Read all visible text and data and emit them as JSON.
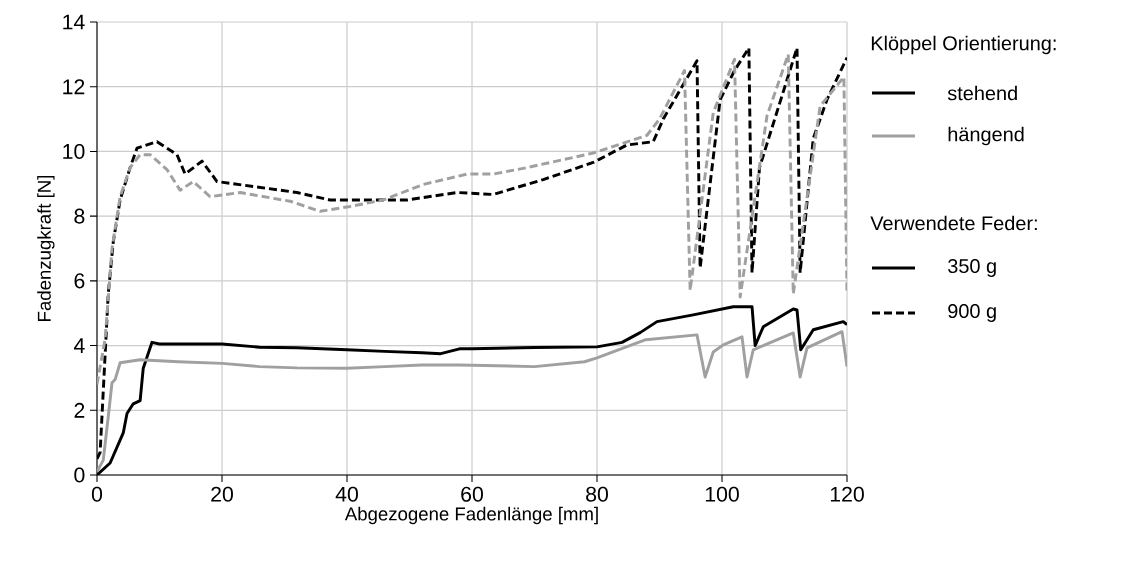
{
  "chart_data": {
    "type": "line",
    "xlabel": "Abgezogene Fadenlänge [mm]",
    "ylabel": "Fadenzugkraft [N]",
    "xlim": [
      0,
      120
    ],
    "ylim": [
      0,
      14
    ],
    "xticks": [
      0,
      20,
      40,
      60,
      80,
      100,
      120
    ],
    "yticks": [
      0,
      2,
      4,
      6,
      8,
      10,
      12,
      14
    ],
    "grid": true,
    "legend": "right",
    "legend_title": "Klöppel Orientierung:",
    "marker": "none",
    "annotations": [
      "Verwendete Feder:",
      "350 g",
      "900 g"
    ],
    "series": [
      {
        "name": "stehend",
        "color": "#000000",
        "line_style": "solid",
        "x": [
          0,
          2.1,
          4.2,
          4.8,
          5.8,
          6.9,
          7.4,
          8.8,
          10,
          15,
          20,
          26,
          32,
          40,
          46,
          52,
          55,
          58,
          60,
          70,
          80,
          84,
          86.9,
          89.6,
          95.4,
          101.8,
          104.8,
          105.3,
          106.6,
          111.4,
          112,
          112.6,
          114.6,
          119.4,
          120
        ],
        "values": [
          0,
          0.37,
          1.3,
          1.9,
          2.2,
          2.3,
          3.3,
          4.1,
          4.05,
          4.05,
          4.05,
          3.95,
          3.93,
          3.87,
          3.82,
          3.78,
          3.75,
          3.9,
          3.9,
          3.94,
          3.96,
          4.1,
          4.4,
          4.74,
          4.95,
          5.2,
          5.2,
          4.0,
          4.58,
          5.13,
          5.1,
          3.87,
          4.49,
          4.74,
          4.65
        ]
      },
      {
        "name": "hängend",
        "color": "#a0a0a0",
        "line_style": "solid",
        "x": [
          0,
          1,
          1.8,
          2.4,
          2.9,
          3.7,
          6.9,
          13,
          20,
          26,
          32,
          40,
          46,
          52,
          58,
          70,
          78,
          80,
          87.8,
          96,
          97.3,
          98.6,
          100.2,
          103.2,
          104,
          105,
          111.4,
          112.5,
          113.6,
          119.2,
          120
        ],
        "values": [
          0.1,
          0.46,
          1.8,
          2.85,
          2.95,
          3.47,
          3.56,
          3.5,
          3.45,
          3.35,
          3.31,
          3.3,
          3.35,
          3.4,
          3.4,
          3.35,
          3.5,
          3.62,
          4.18,
          4.33,
          3.03,
          3.8,
          4.02,
          4.27,
          3.03,
          3.87,
          4.39,
          3.03,
          3.93,
          4.43,
          3.35
        ]
      },
      {
        "color": "#000000",
        "line_style": "dashed",
        "x": [
          0,
          0.5,
          1.8,
          2.6,
          3.7,
          5.3,
          6.4,
          9.6,
          12.8,
          14.1,
          16.8,
          19.2,
          25.6,
          32,
          37.3,
          44.8,
          49.6,
          57.6,
          63.4,
          71.4,
          79.4,
          84.8,
          89,
          90.6,
          96,
          96.5,
          99.7,
          102,
          104.3,
          104.8,
          106,
          112,
          112.5,
          114.6,
          116.8,
          120
        ],
        "values": [
          0.5,
          0.7,
          5.6,
          7.2,
          8.5,
          9.5,
          10.1,
          10.3,
          9.9,
          9.3,
          9.7,
          9.07,
          8.9,
          8.73,
          8.5,
          8.5,
          8.5,
          8.73,
          8.67,
          9.13,
          9.66,
          10.2,
          10.3,
          11.0,
          12.8,
          6.4,
          11.6,
          12.5,
          13.2,
          6.25,
          9.5,
          13.2,
          6.25,
          10.4,
          11.6,
          12.9
        ]
      },
      {
        "color": "#a0a0a0",
        "line_style": "dashed",
        "x": [
          0,
          1.3,
          2.4,
          3.7,
          5.3,
          6.9,
          8.5,
          11.2,
          13.3,
          15.4,
          18.1,
          22.9,
          30.9,
          35.7,
          40.5,
          45.8,
          52.2,
          59.2,
          63.4,
          68.8,
          79.4,
          88,
          90,
          94,
          94.9,
          98.6,
          102,
          102.9,
          107.2,
          110.6,
          111.4,
          115.7,
          119.5,
          120
        ],
        "values": [
          2.8,
          4.2,
          7.0,
          8.6,
          9.5,
          9.9,
          9.9,
          9.44,
          8.8,
          9.07,
          8.6,
          8.73,
          8.46,
          8.15,
          8.3,
          8.5,
          8.98,
          9.3,
          9.3,
          9.5,
          9.95,
          10.5,
          11.0,
          12.5,
          5.7,
          11.2,
          12.85,
          5.5,
          11.1,
          13.0,
          5.6,
          11.4,
          12.3,
          5.6
        ]
      }
    ]
  }
}
